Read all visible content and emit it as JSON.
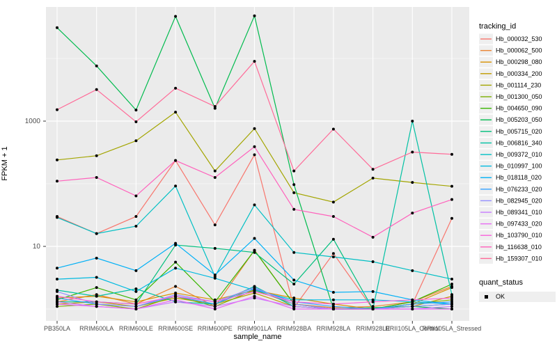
{
  "chart_data": {
    "type": "line",
    "xlabel": "sample_name",
    "ylabel": "FPKM + 1",
    "legend_title": "tracking_id",
    "quant_legend": {
      "title": "quant_status",
      "items": [
        "OK"
      ]
    },
    "y_scale": "log10",
    "panel_bg": "#EBEBEB",
    "grid_color": "#FFFFFF",
    "point_color": "#000000",
    "legend_key_bg": "#EFEFEF",
    "y_ticks": [
      {
        "value": 1000,
        "label": "1000"
      },
      {
        "value": 10,
        "label": "10"
      }
    ],
    "y_minor_ticks": [
      10000,
      100,
      1
    ],
    "x_categories": [
      "PB350LA",
      "RRIM600LA",
      "RRIM600LE",
      "RRIM600SE",
      "RRIM600PE",
      "RRIM901LA",
      "RRIM928BA",
      "RRIM928LA",
      "RRIM928LE",
      "RRII105LA_Control",
      "RRII105LA_Stressed"
    ],
    "series": [
      {
        "name": "Hb_000032_530",
        "color": "#F8766D",
        "values": [
          30,
          16,
          30,
          235,
          22,
          290,
          1.05,
          7.7,
          1,
          1.2,
          28
        ]
      },
      {
        "name": "Hb_000062_500",
        "color": "#EA8331",
        "values": [
          1.3,
          1.7,
          1.2,
          2.3,
          1.1,
          8.7,
          1.2,
          1.05,
          1.1,
          1.3,
          2.3
        ]
      },
      {
        "name": "Hb_000298_080",
        "color": "#D89000",
        "values": [
          1.5,
          1.6,
          1.3,
          1.8,
          1.4,
          2.0,
          1.5,
          1.2,
          1.0,
          1.2,
          2.2
        ]
      },
      {
        "name": "Hb_000334_200",
        "color": "#C09B00",
        "values": [
          1.2,
          1.3,
          1.1,
          1.5,
          1.2,
          1.8,
          1.1,
          1.0,
          1.0,
          1.1,
          1.6
        ]
      },
      {
        "name": "Hb_001114_230",
        "color": "#A3A500",
        "values": [
          240,
          280,
          485,
          1390,
          160,
          760,
          72,
          51,
          123,
          105,
          91
        ]
      },
      {
        "name": "Hb_001300_050",
        "color": "#7CAE00",
        "values": [
          1.1,
          1.2,
          1.0,
          1.6,
          1.1,
          2.0,
          1.2,
          1.0,
          1.0,
          1.2,
          1.4
        ]
      },
      {
        "name": "Hb_004650_090",
        "color": "#39B600",
        "values": [
          1.4,
          2.2,
          1.4,
          5.6,
          1.3,
          8.6,
          1.2,
          1.0,
          1.0,
          1.3,
          2.5
        ]
      },
      {
        "name": "Hb_005203_050",
        "color": "#00BB4E",
        "values": [
          31000,
          7600,
          1500,
          47000,
          1600,
          48000,
          97,
          1.0,
          1.05,
          1.1,
          1.0
        ]
      },
      {
        "name": "Hb_005715_020",
        "color": "#00BF7D",
        "values": [
          1.3,
          1.3,
          1.2,
          10.5,
          9.3,
          8.0,
          2.5,
          13,
          1.0,
          1.1,
          1.2
        ]
      },
      {
        "name": "Hb_006816_340",
        "color": "#00C1A3",
        "values": [
          2.0,
          1.6,
          2.1,
          1.3,
          1.2,
          2.3,
          1.1,
          1.0,
          1.0,
          1000,
          1.7
        ]
      },
      {
        "name": "Hb_009372_010",
        "color": "#00BFC4",
        "values": [
          29,
          16,
          21,
          92,
          3.3,
          46,
          8,
          6.8,
          5.7,
          4.1,
          3.0
        ]
      },
      {
        "name": "Hb_010997_100",
        "color": "#00BAE0",
        "values": [
          3.0,
          3.2,
          1.9,
          4.5,
          3.1,
          2.0,
          1.4,
          1.4,
          1.4,
          1.3,
          1.2
        ]
      },
      {
        "name": "Hb_018118_020",
        "color": "#00B0F6",
        "values": [
          4.5,
          6.5,
          4.1,
          11.2,
          3.5,
          13.4,
          2.9,
          1.85,
          1.9,
          1.4,
          1.2
        ]
      },
      {
        "name": "Hb_076233_020",
        "color": "#35A2FF",
        "values": [
          1.5,
          1.2,
          1.1,
          1.6,
          1.2,
          2.1,
          1.3,
          1.1,
          1.0,
          1.2,
          1.3
        ]
      },
      {
        "name": "Hb_082945_020",
        "color": "#9590FF",
        "values": [
          1.9,
          1.2,
          1.1,
          1.7,
          1.3,
          2.2,
          1.2,
          1.0,
          1.0,
          1.1,
          1.2
        ]
      },
      {
        "name": "Hb_089341_010",
        "color": "#C77CFF",
        "values": [
          1.3,
          1.1,
          1.0,
          1.3,
          1.1,
          1.5,
          1.1,
          1.0,
          1.0,
          1.0,
          1.1
        ]
      },
      {
        "name": "Hb_097433_020",
        "color": "#E76BF3",
        "values": [
          1.2,
          1.1,
          1.0,
          1.4,
          1.0,
          1.6,
          1.0,
          1.0,
          1.0,
          1.0,
          1.0
        ]
      },
      {
        "name": "Hb_103790_010",
        "color": "#FA62DB",
        "values": [
          1.6,
          1.3,
          1.2,
          1.6,
          1.3,
          1.9,
          1.3,
          1.2,
          1.3,
          1.4,
          1.5
        ]
      },
      {
        "name": "Hb_116638_010",
        "color": "#FF62BC",
        "values": [
          110,
          126,
          64,
          235,
          126,
          390,
          39,
          30,
          14,
          34,
          56
        ]
      },
      {
        "name": "Hb_159307_010",
        "color": "#FF6A98",
        "values": [
          1520,
          3190,
          975,
          3350,
          1710,
          9000,
          160,
          745,
          170,
          320,
          295
        ]
      }
    ]
  }
}
